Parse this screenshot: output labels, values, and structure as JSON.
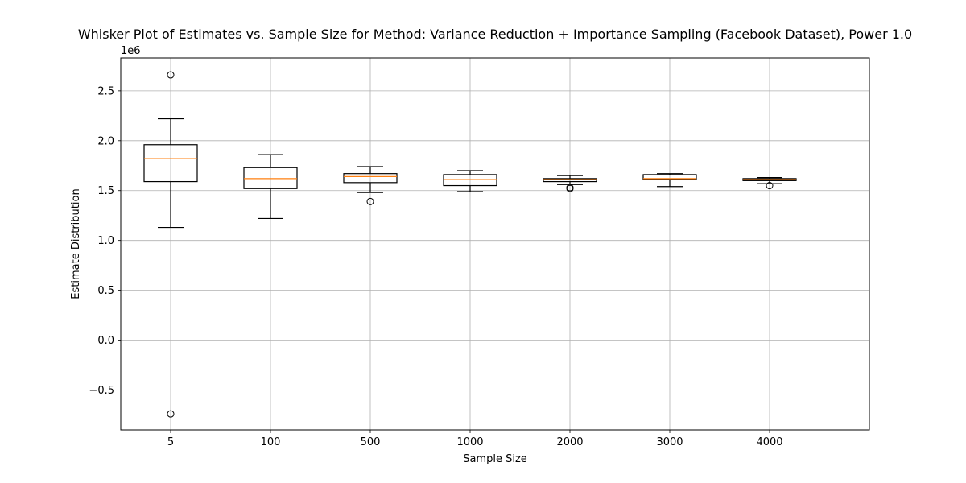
{
  "chart_data": {
    "type": "box",
    "title": "Whisker Plot of Estimates vs. Sample Size for Method: Variance Reduction + Importance Sampling (Facebook Dataset), Power 1.0",
    "xlabel": "Sample Size",
    "ylabel": "Estimate Distribution",
    "y_offset_label": "1e6",
    "y_scale": 1000000,
    "ylim": [
      -0.9,
      2.83
    ],
    "yticks": [
      -0.5,
      0.0,
      0.5,
      1.0,
      1.5,
      2.0,
      2.5
    ],
    "ytick_labels": [
      "−0.5",
      "0.0",
      "0.5",
      "1.0",
      "1.5",
      "2.0",
      "2.5"
    ],
    "grid": true,
    "categories": [
      "5",
      "100",
      "500",
      "1000",
      "2000",
      "3000",
      "4000"
    ],
    "boxes": [
      {
        "whisker_low": 1.13,
        "q1": 1.59,
        "median": 1.82,
        "q3": 1.96,
        "whisker_high": 2.22,
        "outliers": [
          2.66,
          -0.74
        ]
      },
      {
        "whisker_low": 1.22,
        "q1": 1.52,
        "median": 1.62,
        "q3": 1.73,
        "whisker_high": 1.86,
        "outliers": []
      },
      {
        "whisker_low": 1.48,
        "q1": 1.58,
        "median": 1.64,
        "q3": 1.67,
        "whisker_high": 1.74,
        "outliers": [
          1.39
        ]
      },
      {
        "whisker_low": 1.49,
        "q1": 1.55,
        "median": 1.61,
        "q3": 1.66,
        "whisker_high": 1.7,
        "outliers": []
      },
      {
        "whisker_low": 1.56,
        "q1": 1.59,
        "median": 1.61,
        "q3": 1.62,
        "whisker_high": 1.65,
        "outliers": [
          1.52,
          1.53
        ]
      },
      {
        "whisker_low": 1.54,
        "q1": 1.61,
        "median": 1.62,
        "q3": 1.66,
        "whisker_high": 1.67,
        "outliers": []
      },
      {
        "whisker_low": 1.57,
        "q1": 1.6,
        "median": 1.61,
        "q3": 1.62,
        "whisker_high": 1.63,
        "outliers": [
          1.55
        ]
      }
    ],
    "colors": {
      "box": "#000000",
      "median": "#ff7f0e",
      "grid": "#b0b0b0"
    }
  }
}
